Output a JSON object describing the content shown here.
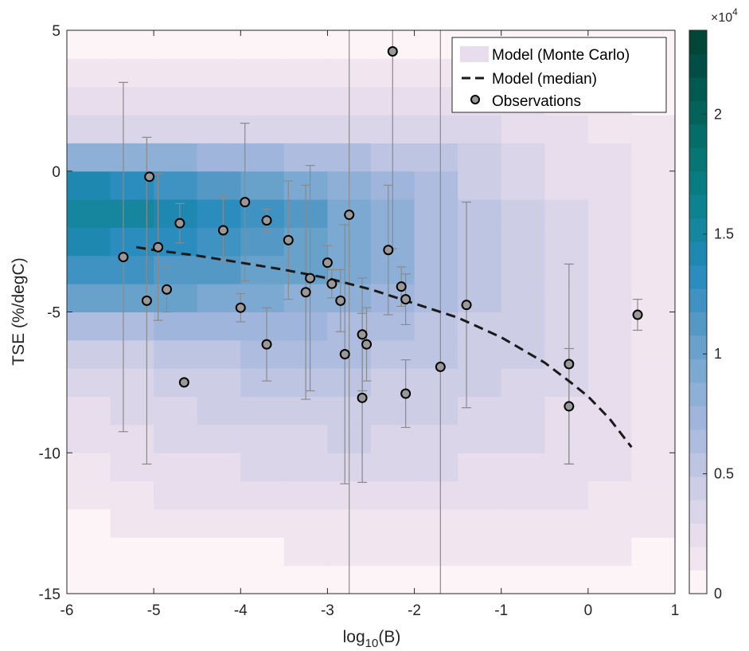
{
  "chart_data": {
    "type": "heatmap",
    "title": "",
    "xlabel": {
      "base": "log",
      "sub": "10",
      "rest": "(B)"
    },
    "ylabel": "TSE (%/degC)",
    "xlim": [
      -6,
      1
    ],
    "ylim": [
      -15,
      5
    ],
    "x_ticks": [
      -6,
      -5,
      -4,
      -3,
      -2,
      -1,
      0,
      1
    ],
    "x_tick_labels": [
      "-6",
      "-5",
      "-4",
      "-3",
      "-2",
      "-1",
      "0",
      "1"
    ],
    "y_ticks": [
      5,
      0,
      -5,
      -10,
      -15
    ],
    "y_tick_labels": [
      "5",
      "0",
      "-5",
      "-10",
      "-15"
    ],
    "grid": false,
    "legend_position": "top-right",
    "legend": [
      {
        "label": "Model (Monte Carlo)",
        "kind": "patch"
      },
      {
        "label": "Model (median)",
        "kind": "dashed-line"
      },
      {
        "label": "Observations",
        "kind": "marker"
      }
    ],
    "colorbar": {
      "min": 0,
      "max": 23500,
      "ticks": [
        0,
        5000,
        10000,
        15000,
        20000
      ],
      "tick_labels": [
        "0",
        "0.5",
        "1",
        "1.5",
        "2"
      ],
      "exponent_base": "×10",
      "exponent_power": "4",
      "colors": [
        "#fdf4f8",
        "#f1e5f0",
        "#e7dded",
        "#dbd5ea",
        "#cdcde6",
        "#bec5e2",
        "#aebddf",
        "#9fb5db",
        "#8fb0d6",
        "#7ca9d1",
        "#68a2cb",
        "#5499c6",
        "#3e93c2",
        "#2b8cbe",
        "#1f88b0",
        "#16869f",
        "#0d8290",
        "#097c82",
        "#067574",
        "#046d67",
        "#03635b",
        "#02594f",
        "#024d44",
        "#014636"
      ]
    },
    "heatmap": {
      "x_edges": [
        -6.0,
        -5.5,
        -5.0,
        -4.5,
        -4.0,
        -3.5,
        -3.0,
        -2.5,
        -2.0,
        -1.5,
        -1.0,
        -0.5,
        0.0,
        0.5,
        1.0
      ],
      "y_edges": [
        -15.0,
        -14.0,
        -13.0,
        -12.0,
        -11.0,
        -10.0,
        -9.0,
        -8.0,
        -7.0,
        -6.0,
        -5.0,
        -4.0,
        -3.0,
        -2.0,
        -1.0,
        0.0,
        1.0,
        2.0,
        3.0,
        4.0,
        5.0
      ],
      "row_order": "bottom-to-top",
      "counts": [
        [
          0,
          0,
          0,
          0,
          0,
          0,
          0,
          0,
          0,
          0,
          500,
          500,
          500,
          500
        ],
        [
          0,
          0,
          0,
          500,
          500,
          1000,
          1000,
          1000,
          1000,
          1000,
          1000,
          1000,
          1000,
          500
        ],
        [
          0,
          1000,
          1000,
          1500,
          1500,
          1500,
          1500,
          1500,
          1500,
          1500,
          1500,
          1500,
          1500,
          1000
        ],
        [
          1000,
          1500,
          2000,
          2000,
          2500,
          2500,
          2500,
          2500,
          2500,
          2000,
          2000,
          2000,
          1500,
          1000
        ],
        [
          1500,
          2000,
          2500,
          2500,
          3000,
          3000,
          3000,
          3000,
          3000,
          2500,
          2500,
          2500,
          2000,
          1000
        ],
        [
          2000,
          2500,
          3000,
          3500,
          3500,
          3500,
          4000,
          3500,
          3500,
          3000,
          3000,
          2500,
          2000,
          1000
        ],
        [
          2500,
          3000,
          3500,
          4000,
          4500,
          4500,
          4500,
          4000,
          4000,
          3500,
          3000,
          2500,
          2000,
          1000
        ],
        [
          3000,
          3500,
          4000,
          4500,
          5000,
          5000,
          5000,
          4500,
          4500,
          4000,
          3500,
          3000,
          2000,
          1000
        ],
        [
          4000,
          4500,
          5000,
          5500,
          6000,
          6000,
          6000,
          5500,
          5000,
          4500,
          4000,
          3000,
          2000,
          1000
        ],
        [
          6000,
          6500,
          7000,
          7000,
          7000,
          7000,
          6500,
          6000,
          5500,
          4500,
          4000,
          3000,
          2000,
          1000
        ],
        [
          10500,
          10500,
          10000,
          9500,
          9000,
          8500,
          8000,
          7000,
          6000,
          5000,
          4000,
          3000,
          2000,
          1000
        ],
        [
          12500,
          12000,
          11500,
          11000,
          10500,
          10000,
          9000,
          8000,
          6500,
          5000,
          4000,
          3000,
          2000,
          1000
        ],
        [
          14000,
          13500,
          13000,
          12000,
          11000,
          10500,
          9500,
          8000,
          6500,
          5000,
          4000,
          3000,
          2000,
          1000
        ],
        [
          15500,
          15000,
          14000,
          13000,
          12000,
          11000,
          9500,
          8000,
          6500,
          5000,
          4000,
          3000,
          2000,
          1000
        ],
        [
          14000,
          13500,
          12500,
          11500,
          10500,
          9500,
          8500,
          7000,
          6000,
          4500,
          3500,
          2500,
          2000,
          1000
        ],
        [
          8500,
          8500,
          8000,
          7500,
          7000,
          6500,
          6000,
          5500,
          5000,
          4000,
          3500,
          2500,
          2000,
          1000
        ],
        [
          3500,
          3500,
          3500,
          3500,
          3500,
          3500,
          3500,
          3500,
          3500,
          3000,
          2500,
          2000,
          1500,
          1000
        ],
        [
          2000,
          2500,
          2500,
          2500,
          2500,
          2500,
          2500,
          2500,
          2500,
          2000,
          2000,
          1500,
          1500,
          500
        ],
        [
          1000,
          1500,
          1500,
          1500,
          1500,
          1500,
          1500,
          1500,
          1500,
          1500,
          1000,
          1000,
          1000,
          500
        ],
        [
          0,
          0,
          0,
          0,
          0,
          0,
          0,
          0,
          0,
          0,
          0,
          0,
          0,
          0
        ]
      ]
    },
    "median_line": {
      "name": "Model (median)",
      "x": [
        -5.2,
        -5.0,
        -4.5,
        -4.0,
        -3.5,
        -3.0,
        -2.5,
        -2.0,
        -1.5,
        -1.0,
        -0.5,
        -0.2,
        0.0,
        0.25,
        0.5
      ],
      "y": [
        -2.7,
        -2.8,
        -3.0,
        -3.25,
        -3.5,
        -3.8,
        -4.2,
        -4.7,
        -5.2,
        -5.9,
        -6.8,
        -7.5,
        -8.0,
        -8.8,
        -9.8
      ]
    },
    "observations": {
      "name": "Observations",
      "points": [
        {
          "x": -5.35,
          "y": -3.05,
          "err_low": 6.2,
          "err_high": 6.2
        },
        {
          "x": -5.08,
          "y": -4.6,
          "err_low": 5.8,
          "err_high": 5.8
        },
        {
          "x": -5.05,
          "y": -0.2,
          "err_low": 0.0,
          "err_high": 0.0
        },
        {
          "x": -4.95,
          "y": -2.7,
          "err_low": 2.6,
          "err_high": 2.6
        },
        {
          "x": -4.85,
          "y": -4.2,
          "err_low": 0.8,
          "err_high": 0.8
        },
        {
          "x": -4.7,
          "y": -1.85,
          "err_low": 0.7,
          "err_high": 0.7
        },
        {
          "x": -4.65,
          "y": -7.5,
          "err_low": 0.0,
          "err_high": 0.0
        },
        {
          "x": -4.2,
          "y": -2.1,
          "err_low": 1.2,
          "err_high": 1.2
        },
        {
          "x": -4.0,
          "y": -4.85,
          "err_low": 0.5,
          "err_high": 0.5
        },
        {
          "x": -3.95,
          "y": -1.1,
          "err_low": 2.8,
          "err_high": 2.8
        },
        {
          "x": -3.7,
          "y": -1.75,
          "err_low": 0.4,
          "err_high": 0.4
        },
        {
          "x": -3.7,
          "y": -6.15,
          "err_low": 1.3,
          "err_high": 1.3
        },
        {
          "x": -3.45,
          "y": -2.45,
          "err_low": 2.1,
          "err_high": 2.1
        },
        {
          "x": -3.25,
          "y": -4.3,
          "err_low": 3.8,
          "err_high": 3.8
        },
        {
          "x": -3.2,
          "y": -3.8,
          "err_low": 4.0,
          "err_high": 4.0
        },
        {
          "x": -3.0,
          "y": -3.25,
          "err_low": 0.6,
          "err_high": 0.6
        },
        {
          "x": -2.95,
          "y": -4.0,
          "err_low": 0.5,
          "err_high": 0.5
        },
        {
          "x": -2.85,
          "y": -4.6,
          "err_low": 1.1,
          "err_high": 1.1
        },
        {
          "x": -2.8,
          "y": -6.5,
          "err_low": 4.6,
          "err_high": 4.6
        },
        {
          "x": -2.75,
          "y": -1.55,
          "err_low": 20.0,
          "err_high": 20.0
        },
        {
          "x": -2.6,
          "y": -8.05,
          "err_low": 3.0,
          "err_high": 3.0
        },
        {
          "x": -2.6,
          "y": -5.8,
          "err_low": 2.0,
          "err_high": 2.0
        },
        {
          "x": -2.55,
          "y": -6.15,
          "err_low": 1.3,
          "err_high": 1.3
        },
        {
          "x": -2.3,
          "y": -2.8,
          "err_low": 2.3,
          "err_high": 2.3
        },
        {
          "x": -2.25,
          "y": 4.25,
          "err_low": 7.0,
          "err_high": 7.0
        },
        {
          "x": -2.15,
          "y": -4.1,
          "err_low": 0.7,
          "err_high": 0.7
        },
        {
          "x": -2.1,
          "y": -4.55,
          "err_low": 0.9,
          "err_high": 0.9
        },
        {
          "x": -2.1,
          "y": -7.9,
          "err_low": 1.2,
          "err_high": 1.2
        },
        {
          "x": -1.7,
          "y": -6.95,
          "err_low": 20.0,
          "err_high": 20.0
        },
        {
          "x": -1.4,
          "y": -4.75,
          "err_low": 3.65,
          "err_high": 3.65
        },
        {
          "x": -0.22,
          "y": -6.85,
          "err_low": 3.55,
          "err_high": 3.55
        },
        {
          "x": -0.22,
          "y": -8.35,
          "err_low": 2.05,
          "err_high": 2.05
        },
        {
          "x": 0.57,
          "y": -5.1,
          "err_low": 0.55,
          "err_high": 0.55
        }
      ]
    }
  }
}
